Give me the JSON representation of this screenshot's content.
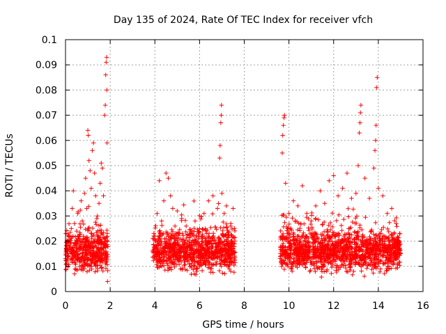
{
  "chart_data": {
    "type": "scatter",
    "title": "Day 135 of 2024, Rate Of TEC Index for receiver vfch",
    "xlabel": "GPS time / hours",
    "ylabel": "ROTI / TECUs",
    "xlim": [
      0,
      16
    ],
    "ylim": [
      0,
      0.1
    ],
    "x_ticks": [
      0,
      2,
      4,
      6,
      8,
      10,
      12,
      14,
      16
    ],
    "y_ticks": [
      0,
      0.01,
      0.02,
      0.03,
      0.04,
      0.05,
      0.06,
      0.07,
      0.08,
      0.09,
      0.1
    ],
    "x_tick_labels": [
      "0",
      "2",
      "4",
      "6",
      "8",
      "10",
      "12",
      "14",
      "16"
    ],
    "y_tick_labels": [
      "0",
      "0.01",
      "0.02",
      "0.03",
      "0.04",
      "0.05",
      "0.06",
      "0.07",
      "0.08",
      "0.09",
      "0.1"
    ],
    "grid": true,
    "marker": "+",
    "color": "#ff0000",
    "data_segments": [
      {
        "start": 0.0,
        "end": 1.9
      },
      {
        "start": 3.9,
        "end": 7.6
      },
      {
        "start": 9.6,
        "end": 15.0
      }
    ],
    "series": [
      {
        "name": "ROTI",
        "points": [
          [
            0.05,
            0.011
          ],
          [
            0.1,
            0.016
          ],
          [
            0.15,
            0.022
          ],
          [
            0.2,
            0.018
          ],
          [
            0.25,
            0.013
          ],
          [
            0.3,
            0.033
          ],
          [
            0.35,
            0.04
          ],
          [
            0.4,
            0.027
          ],
          [
            0.45,
            0.019
          ],
          [
            0.5,
            0.024
          ],
          [
            0.55,
            0.031
          ],
          [
            0.6,
            0.021
          ],
          [
            0.65,
            0.015
          ],
          [
            0.7,
            0.036
          ],
          [
            0.75,
            0.028
          ],
          [
            0.8,
            0.022
          ],
          [
            0.85,
            0.039
          ],
          [
            0.9,
            0.045
          ],
          [
            0.95,
            0.033
          ],
          [
            1.0,
            0.064
          ],
          [
            1.02,
            0.062
          ],
          [
            1.05,
            0.052
          ],
          [
            1.1,
            0.048
          ],
          [
            1.15,
            0.041
          ],
          [
            1.2,
            0.056
          ],
          [
            1.25,
            0.059
          ],
          [
            1.3,
            0.047
          ],
          [
            1.35,
            0.038
          ],
          [
            1.4,
            0.029
          ],
          [
            1.45,
            0.024
          ],
          [
            1.5,
            0.035
          ],
          [
            1.55,
            0.043
          ],
          [
            1.6,
            0.051
          ],
          [
            1.65,
            0.049
          ],
          [
            1.7,
            0.038
          ],
          [
            1.75,
            0.07
          ],
          [
            1.78,
            0.074
          ],
          [
            1.8,
            0.086
          ],
          [
            1.82,
            0.091
          ],
          [
            1.84,
            0.093
          ],
          [
            1.85,
            0.08
          ],
          [
            1.86,
            0.059
          ],
          [
            1.88,
            0.004
          ],
          [
            4.0,
            0.022
          ],
          [
            4.1,
            0.031
          ],
          [
            4.2,
            0.044
          ],
          [
            4.3,
            0.028
          ],
          [
            4.4,
            0.036
          ],
          [
            4.5,
            0.047
          ],
          [
            4.6,
            0.045
          ],
          [
            4.7,
            0.038
          ],
          [
            4.8,
            0.033
          ],
          [
            4.9,
            0.026
          ],
          [
            5.0,
            0.032
          ],
          [
            5.2,
            0.029
          ],
          [
            5.4,
            0.026
          ],
          [
            5.6,
            0.024
          ],
          [
            5.8,
            0.028
          ],
          [
            6.0,
            0.025
          ],
          [
            6.2,
            0.031
          ],
          [
            6.4,
            0.036
          ],
          [
            6.6,
            0.038
          ],
          [
            6.8,
            0.033
          ],
          [
            6.9,
            0.053
          ],
          [
            6.92,
            0.058
          ],
          [
            6.95,
            0.067
          ],
          [
            6.97,
            0.07
          ],
          [
            6.98,
            0.074
          ],
          [
            7.0,
            0.039
          ],
          [
            7.1,
            0.031
          ],
          [
            7.2,
            0.034
          ],
          [
            7.4,
            0.027
          ],
          [
            7.5,
            0.033
          ],
          [
            9.7,
            0.055
          ],
          [
            9.72,
            0.062
          ],
          [
            9.75,
            0.066
          ],
          [
            9.78,
            0.069
          ],
          [
            9.8,
            0.07
          ],
          [
            9.85,
            0.043
          ],
          [
            10.0,
            0.031
          ],
          [
            10.2,
            0.036
          ],
          [
            10.4,
            0.034
          ],
          [
            10.6,
            0.042
          ],
          [
            10.8,
            0.031
          ],
          [
            11.0,
            0.028
          ],
          [
            11.2,
            0.034
          ],
          [
            11.4,
            0.04
          ],
          [
            11.6,
            0.035
          ],
          [
            11.8,
            0.044
          ],
          [
            12.0,
            0.046
          ],
          [
            12.2,
            0.038
          ],
          [
            12.4,
            0.041
          ],
          [
            12.6,
            0.047
          ],
          [
            12.8,
            0.037
          ],
          [
            13.0,
            0.039
          ],
          [
            13.1,
            0.05
          ],
          [
            13.15,
            0.063
          ],
          [
            13.18,
            0.067
          ],
          [
            13.2,
            0.071
          ],
          [
            13.22,
            0.074
          ],
          [
            13.4,
            0.045
          ],
          [
            13.6,
            0.037
          ],
          [
            13.8,
            0.049
          ],
          [
            13.85,
            0.056
          ],
          [
            13.88,
            0.06
          ],
          [
            13.9,
            0.066
          ],
          [
            13.92,
            0.081
          ],
          [
            13.95,
            0.085
          ],
          [
            14.0,
            0.041
          ],
          [
            14.2,
            0.038
          ],
          [
            14.4,
            0.031
          ],
          [
            14.6,
            0.033
          ],
          [
            14.8,
            0.027
          ],
          [
            14.95,
            0.023
          ]
        ]
      }
    ]
  }
}
